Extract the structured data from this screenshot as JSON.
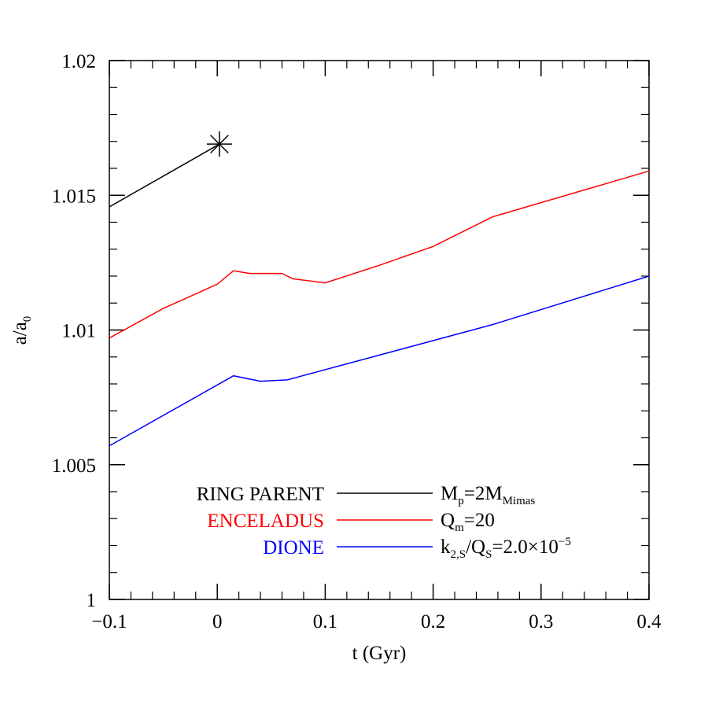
{
  "chart_data": {
    "type": "line",
    "xlabel": "t (Gyr)",
    "ylabel": [
      {
        "t": "a/a"
      },
      {
        "t": "0",
        "s": "sub"
      }
    ],
    "xlim": [
      -0.1,
      0.4
    ],
    "ylim": [
      1,
      1.02
    ],
    "xticks": [
      {
        "value": -0.1,
        "label": "−0.1"
      },
      0,
      0.1,
      0.2,
      0.3,
      0.4
    ],
    "yticks": [
      1,
      1.005,
      1.01,
      1.015,
      1.02
    ],
    "xticks_minor": [
      -0.08,
      -0.06,
      -0.04,
      -0.02,
      0.02,
      0.04,
      0.06,
      0.08,
      0.12,
      0.14,
      0.16,
      0.18,
      0.22,
      0.24,
      0.26,
      0.28,
      0.32,
      0.34,
      0.36,
      0.38
    ],
    "yticks_minor": [
      1.001,
      1.002,
      1.003,
      1.004,
      1.006,
      1.007,
      1.008,
      1.009,
      1.011,
      1.012,
      1.013,
      1.014,
      1.016,
      1.017,
      1.018,
      1.019
    ],
    "series": [
      {
        "name": "RING PARENT",
        "color": "#000000",
        "end_marker": "asterisk",
        "x": [
          -0.1,
          0.002
        ],
        "values": [
          1.01457,
          1.0169
        ],
        "annotation": [
          {
            "t": "M"
          },
          {
            "t": "p",
            "s": "sub"
          },
          {
            "t": "=2M"
          },
          {
            "t": "Mimas",
            "s": "sub"
          }
        ]
      },
      {
        "name": "ENCELADUS",
        "color": "#ff0000",
        "x": [
          -0.1,
          -0.05,
          0.0,
          0.015,
          0.03,
          0.06,
          0.07,
          0.1,
          0.15,
          0.2,
          0.255,
          0.4
        ],
        "values": [
          1.0097,
          1.0108,
          1.0117,
          1.0122,
          1.0121,
          1.0121,
          1.0119,
          1.01175,
          1.0124,
          1.0131,
          1.0142,
          1.0159
        ],
        "annotation": [
          {
            "t": "Q"
          },
          {
            "t": "m",
            "s": "sub"
          },
          {
            "t": "=20"
          }
        ]
      },
      {
        "name": "DIONE",
        "color": "#0000ff",
        "x": [
          -0.1,
          0.015,
          0.04,
          0.065,
          0.255,
          0.4
        ],
        "values": [
          1.0057,
          1.0083,
          1.0081,
          1.00815,
          1.0102,
          1.012
        ],
        "annotation": [
          {
            "t": "k"
          },
          {
            "t": "2,S",
            "s": "sub"
          },
          {
            "t": "/Q"
          },
          {
            "t": "S",
            "s": "sub"
          },
          {
            "t": "=2.0×10"
          },
          {
            "t": "−5",
            "s": "sup"
          }
        ]
      }
    ]
  }
}
